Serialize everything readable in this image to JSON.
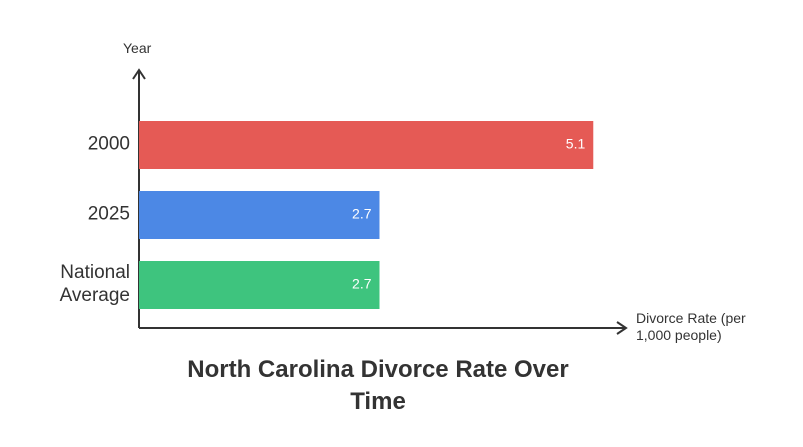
{
  "chart_data": {
    "type": "hbar",
    "title": "North Carolina Divorce Rate Over Time",
    "x_label": "Divorce Rate (per 1,000 people)",
    "y_label": "Year",
    "categories": [
      "2000",
      "2025",
      "National Average"
    ],
    "values": [
      5.1,
      2.7,
      2.7
    ],
    "colors": [
      "#e55a55",
      "#4c88e5",
      "#3ec47e"
    ],
    "xlim": [
      0,
      5.4
    ]
  }
}
